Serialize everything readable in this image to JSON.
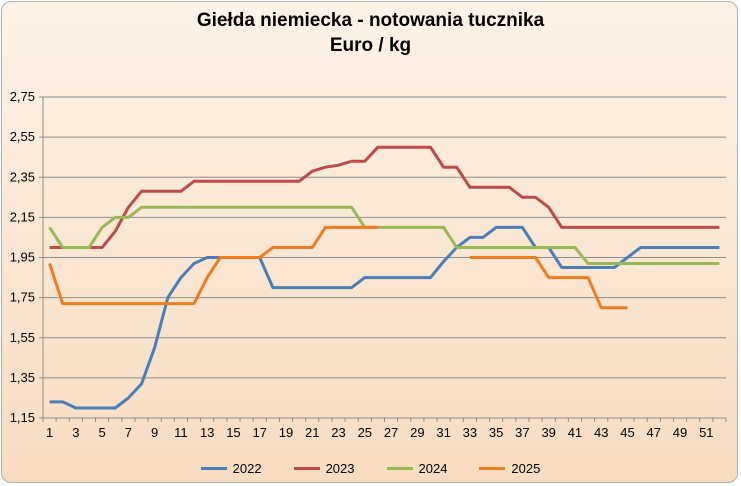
{
  "chart_data": {
    "type": "line",
    "title": "Giełda niemiecka  - notowania tucznika",
    "subtitle": "Euro / kg",
    "xlabel": "",
    "ylabel": "",
    "x_tick_labels": [
      "1",
      "3",
      "5",
      "7",
      "9",
      "11",
      "13",
      "15",
      "17",
      "19",
      "21",
      "23",
      "25",
      "27",
      "29",
      "31",
      "33",
      "35",
      "37",
      "39",
      "41",
      "43",
      "45",
      "47",
      "49",
      "51"
    ],
    "y_tick_labels": [
      "1,15",
      "1,35",
      "1,55",
      "1,75",
      "1,95",
      "2,15",
      "2,35",
      "2,55",
      "2,75"
    ],
    "xlim": [
      1,
      52
    ],
    "ylim": [
      1.15,
      2.75
    ],
    "grid": "horizontal",
    "legend_position": "bottom",
    "series": [
      {
        "name": "2022",
        "color": "#4a7ebb",
        "x": [
          1,
          2,
          3,
          4,
          5,
          6,
          7,
          8,
          9,
          10,
          11,
          12,
          13,
          14,
          15,
          16,
          17,
          18,
          19,
          20,
          21,
          22,
          23,
          24,
          25,
          26,
          27,
          28,
          29,
          30,
          31,
          32,
          33,
          34,
          35,
          36,
          37,
          38,
          39,
          40,
          41,
          42,
          43,
          44,
          45,
          46,
          47,
          48,
          49,
          50,
          51,
          52
        ],
        "values": [
          1.23,
          1.23,
          1.2,
          1.2,
          1.2,
          1.2,
          1.25,
          1.32,
          1.5,
          1.75,
          1.85,
          1.92,
          1.95,
          1.95,
          1.95,
          1.95,
          1.95,
          1.8,
          1.8,
          1.8,
          1.8,
          1.8,
          1.8,
          1.8,
          1.85,
          1.85,
          1.85,
          1.85,
          1.85,
          1.85,
          1.93,
          2.0,
          2.05,
          2.05,
          2.1,
          2.1,
          2.1,
          2.0,
          2.0,
          1.9,
          1.9,
          1.9,
          1.9,
          1.9,
          1.95,
          2.0,
          2.0,
          2.0,
          2.0,
          2.0,
          2.0,
          2.0
        ]
      },
      {
        "name": "2023",
        "color": "#be4b48",
        "x": [
          1,
          2,
          3,
          4,
          5,
          6,
          7,
          8,
          9,
          10,
          11,
          12,
          13,
          14,
          15,
          16,
          17,
          18,
          19,
          20,
          21,
          22,
          23,
          24,
          25,
          26,
          27,
          28,
          29,
          30,
          31,
          32,
          33,
          34,
          35,
          36,
          37,
          38,
          39,
          40,
          41,
          42,
          43,
          44,
          45,
          46,
          47,
          48,
          49,
          50,
          51,
          52
        ],
        "values": [
          2.0,
          2.0,
          2.0,
          2.0,
          2.0,
          2.08,
          2.2,
          2.28,
          2.28,
          2.28,
          2.28,
          2.33,
          2.33,
          2.33,
          2.33,
          2.33,
          2.33,
          2.33,
          2.33,
          2.33,
          2.38,
          2.4,
          2.41,
          2.43,
          2.43,
          2.5,
          2.5,
          2.5,
          2.5,
          2.5,
          2.4,
          2.4,
          2.3,
          2.3,
          2.3,
          2.3,
          2.25,
          2.25,
          2.2,
          2.1,
          2.1,
          2.1,
          2.1,
          2.1,
          2.1,
          2.1,
          2.1,
          2.1,
          2.1,
          2.1,
          2.1,
          2.1
        ]
      },
      {
        "name": "2024",
        "color": "#98b954",
        "x": [
          1,
          2,
          3,
          4,
          5,
          6,
          7,
          8,
          9,
          10,
          11,
          12,
          13,
          14,
          15,
          16,
          17,
          18,
          19,
          20,
          21,
          22,
          23,
          24,
          25,
          26,
          27,
          28,
          29,
          30,
          31,
          32,
          33,
          34,
          35,
          36,
          37,
          38,
          39,
          40,
          41,
          42,
          43,
          44,
          45,
          46,
          47,
          48,
          49,
          50,
          51,
          52
        ],
        "values": [
          2.1,
          2.0,
          2.0,
          2.0,
          2.1,
          2.15,
          2.15,
          2.2,
          2.2,
          2.2,
          2.2,
          2.2,
          2.2,
          2.2,
          2.2,
          2.2,
          2.2,
          2.2,
          2.2,
          2.2,
          2.2,
          2.2,
          2.2,
          2.2,
          2.1,
          2.1,
          2.1,
          2.1,
          2.1,
          2.1,
          2.1,
          2.0,
          2.0,
          2.0,
          2.0,
          2.0,
          2.0,
          2.0,
          2.0,
          2.0,
          2.0,
          1.92,
          1.92,
          1.92,
          1.92,
          1.92,
          1.92,
          1.92,
          1.92,
          1.92,
          1.92,
          1.92
        ]
      },
      {
        "name": "2025",
        "color": "#f07c22",
        "x": [
          1,
          2,
          3,
          4,
          5,
          6,
          7,
          8,
          9,
          10,
          11,
          12,
          13,
          14,
          15,
          16,
          17,
          18,
          19,
          20,
          21,
          22,
          23,
          24,
          25,
          26,
          null,
          33,
          34,
          35,
          36,
          37,
          38,
          39,
          40,
          41,
          42,
          43,
          44,
          45
        ],
        "values": [
          1.92,
          1.72,
          1.72,
          1.72,
          1.72,
          1.72,
          1.72,
          1.72,
          1.72,
          1.72,
          1.72,
          1.72,
          1.85,
          1.95,
          1.95,
          1.95,
          1.95,
          2.0,
          2.0,
          2.0,
          2.0,
          2.1,
          2.1,
          2.1,
          2.1,
          2.1,
          null,
          1.95,
          1.95,
          1.95,
          1.95,
          1.95,
          1.95,
          1.85,
          1.85,
          1.85,
          1.85,
          1.7,
          1.7,
          1.7
        ]
      }
    ]
  }
}
